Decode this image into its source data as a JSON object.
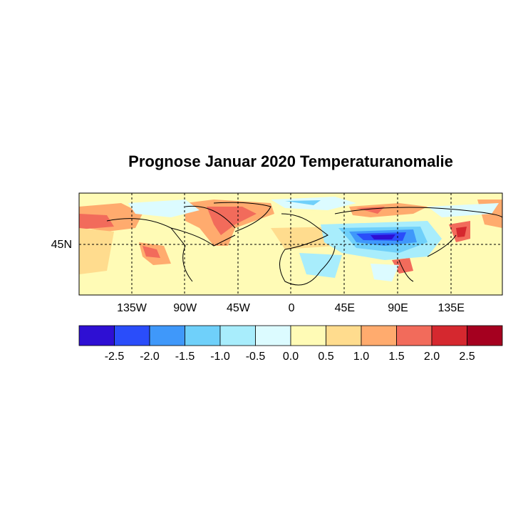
{
  "title": "Prognose Januar 2020 Temperaturanomalie",
  "map": {
    "lon_labels": [
      "135W",
      "90W",
      "45W",
      "0",
      "45E",
      "90E",
      "135E"
    ],
    "lat_labels": [
      "45N"
    ]
  },
  "colorbar": {
    "colors": [
      "#2e0fd3",
      "#2a4dfa",
      "#3f98fa",
      "#6fd0fa",
      "#a8edfc",
      "#dcfbff",
      "#fffbb6",
      "#ffdc8e",
      "#ffab6e",
      "#f26b5b",
      "#d5282f",
      "#a5001f"
    ],
    "labels": [
      "-2.5",
      "-2.0",
      "-1.5",
      "-1.0",
      "-0.5",
      "0.0",
      "0.5",
      "1.0",
      "1.5",
      "2.0",
      "2.5"
    ]
  }
}
